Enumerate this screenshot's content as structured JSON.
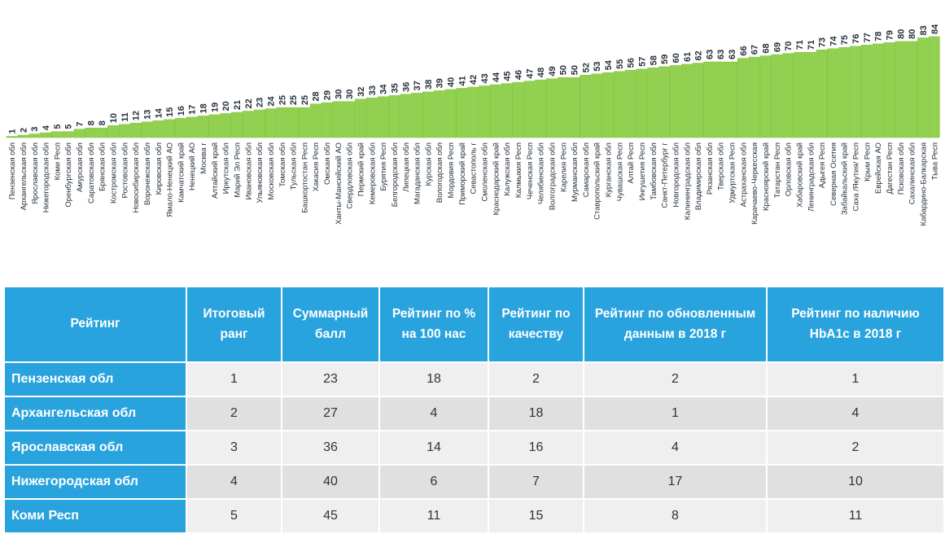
{
  "chart_data": {
    "type": "bar",
    "title": "",
    "xlabel": "",
    "ylabel": "",
    "categories": [
      "Пензенская обл",
      "Архангельская обл",
      "Ярославская обл",
      "Нижегородская обл",
      "Коми Респ",
      "Оренбургская обл",
      "Амурская обл",
      "Саратовская обл",
      "Брянская обл",
      "Костромская обл",
      "Ростовская обл",
      "Новосибирская обл",
      "Воронежская обл",
      "Кировская обл",
      "Ямало-Ненецкий АО",
      "Камчатский край",
      "Ненецкий АО",
      "Москва г",
      "Алтайский край",
      "Иркутская обл",
      "Марий Эл Респ",
      "Ивановская обл",
      "Ульяновская обл",
      "Московская обл",
      "Томская обл",
      "Тульская обл",
      "Башкортостан Респ",
      "Хакасия Респ",
      "Омская обл",
      "Ханты-Мансийский АО",
      "Свердловская обл",
      "Пермский край",
      "Кемеровская обл",
      "Бурятия Респ",
      "Белгородская обл",
      "Липецкая обл",
      "Магаданская обл",
      "Курская обл",
      "Вологодская обл",
      "Мордовия Респ",
      "Приморский край",
      "Севастополь г",
      "Смоленская обл",
      "Краснодарский край",
      "Калужская обл",
      "Калмыкия Респ",
      "Чеченская Респ",
      "Челябинская обл",
      "Волгоградская обл",
      "Карелия Респ",
      "Мурманская обл",
      "Самарская обл",
      "Ставропольский край",
      "Курганская обл",
      "Чувашская Респ",
      "Алтай Респ",
      "Ингушетия Респ",
      "Тамбовская обл",
      "Санкт-Петербург г",
      "Новгородская обл",
      "Калининградская обл",
      "Владимирская обл",
      "Рязанская обл",
      "Тверская обл",
      "Удмуртская Респ",
      "Астраханская обл",
      "Карачаево-Черкесская",
      "Красноярский край",
      "Татарстан Респ",
      "Орловская обл",
      "Хабаровский край",
      "Ленинградская обл",
      "Адыгея Респ",
      "Северная Осетия",
      "Забайкальский край",
      "Саха /Якутия/ Респ",
      "Крым Респ",
      "Еврейская АО",
      "Дагестан Респ",
      "Псковская обл",
      "Сахалинская обл",
      "Кабардино-Балкарская",
      "Тыва Респ"
    ],
    "values": [
      1,
      2,
      3,
      4,
      5,
      5,
      7,
      8,
      8,
      10,
      11,
      12,
      13,
      14,
      15,
      16,
      17,
      18,
      19,
      20,
      21,
      22,
      23,
      24,
      25,
      25,
      25,
      28,
      29,
      30,
      30,
      32,
      33,
      34,
      35,
      36,
      37,
      38,
      39,
      40,
      41,
      42,
      43,
      44,
      45,
      46,
      47,
      48,
      49,
      50,
      50,
      52,
      53,
      54,
      55,
      56,
      57,
      58,
      59,
      60,
      61,
      62,
      63,
      63,
      63,
      66,
      67,
      68,
      69,
      70,
      71,
      71,
      73,
      74,
      75,
      76,
      77,
      78,
      79,
      80,
      80,
      83,
      84
    ],
    "ylim": [
      0,
      84
    ],
    "grid": false,
    "legend": "none",
    "colors": {
      "bar": "#92d050"
    }
  },
  "table": {
    "headers": [
      "Рейтинг",
      "Итоговый ранг",
      "Суммарный балл",
      "Рейтинг по % на 100 нас",
      "Рейтинг по качеству",
      "Рейтинг по обновленным данным в 2018 г",
      "Рейтинг по наличию HbA1c в 2018 г"
    ],
    "rows": [
      [
        "Пензенская обл",
        "1",
        "23",
        "18",
        "2",
        "2",
        "1"
      ],
      [
        "Архангельская обл",
        "2",
        "27",
        "4",
        "18",
        "1",
        "4"
      ],
      [
        "Ярославская обл",
        "3",
        "36",
        "14",
        "16",
        "4",
        "2"
      ],
      [
        "Нижегородская обл",
        "4",
        "40",
        "6",
        "7",
        "17",
        "10"
      ],
      [
        "Коми Респ",
        "5",
        "45",
        "11",
        "15",
        "8",
        "11"
      ]
    ],
    "colors": {
      "header": "#29a3dd",
      "row_odd": "#efefef",
      "row_even": "#e0e0e0"
    }
  }
}
